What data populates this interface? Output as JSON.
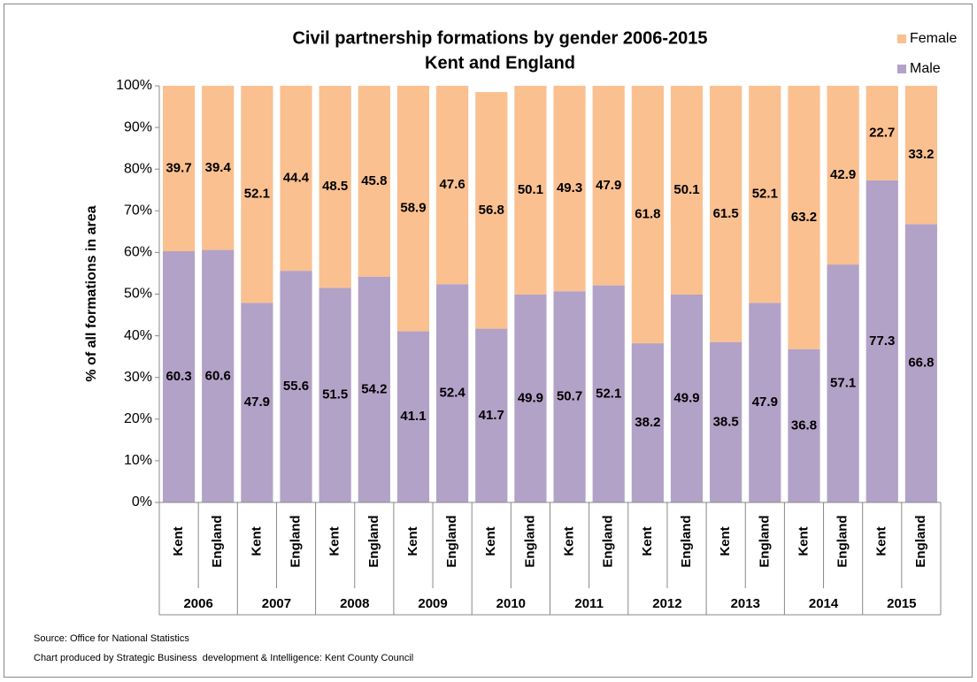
{
  "chart_data": {
    "type": "stacked_bar",
    "title": "Civil partnership formations by gender 2006-2015",
    "subtitle": "Kent and England",
    "y_label": "% of all formations in area",
    "groups": [
      "2006",
      "2007",
      "2008",
      "2009",
      "2010",
      "2011",
      "2012",
      "2013",
      "2014",
      "2015"
    ],
    "categories": [
      "Kent",
      "England",
      "Kent",
      "England",
      "Kent",
      "England",
      "Kent",
      "England",
      "Kent",
      "England",
      "Kent",
      "England",
      "Kent",
      "England",
      "Kent",
      "England",
      "Kent",
      "England",
      "Kent",
      "England"
    ],
    "series": [
      {
        "name": "Male",
        "color": "#b3a2c7",
        "values": [
          60.3,
          60.6,
          47.9,
          55.6,
          51.5,
          54.2,
          41.1,
          52.4,
          41.7,
          49.9,
          50.7,
          52.1,
          38.2,
          49.9,
          38.5,
          47.9,
          36.8,
          57.1,
          77.3,
          66.8
        ]
      },
      {
        "name": "Female",
        "color": "#fac090",
        "values": [
          39.7,
          39.4,
          52.1,
          44.4,
          48.5,
          45.8,
          58.9,
          47.6,
          56.8,
          50.1,
          49.3,
          47.9,
          61.8,
          50.1,
          61.5,
          52.1,
          63.2,
          42.9,
          22.7,
          33.2
        ]
      }
    ],
    "ylim": [
      0,
      100
    ],
    "yticks": [
      {
        "value": 0,
        "label": "0%"
      },
      {
        "value": 10,
        "label": "10%"
      },
      {
        "value": 20,
        "label": "20%"
      },
      {
        "value": 30,
        "label": "30%"
      },
      {
        "value": 40,
        "label": "40%"
      },
      {
        "value": 50,
        "label": "50%"
      },
      {
        "value": 60,
        "label": "60%"
      },
      {
        "value": 70,
        "label": "70%"
      },
      {
        "value": 80,
        "label": "80%"
      },
      {
        "value": 90,
        "label": "90%"
      },
      {
        "value": 100,
        "label": "100%"
      }
    ],
    "legend": "top-right",
    "notes": [
      "Source: Office for National Statistics",
      "Chart produced by Strategic Business  development & Intelligence: Kent County Council"
    ]
  }
}
